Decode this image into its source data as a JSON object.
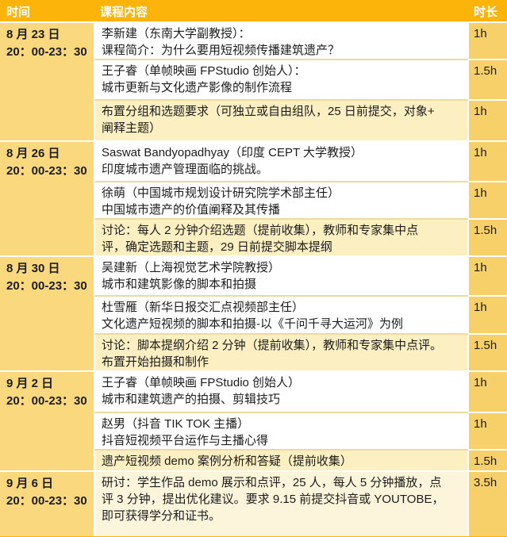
{
  "colors": {
    "header-bg": "#FCB30A",
    "header-text": "#FFFFFF",
    "time-col-bg": "#FAD87D",
    "duration-col-bg": "#F8D06A",
    "row-cream": "#FCEFC2",
    "row-cream-light": "#FDF5DB",
    "divider-tan": "#EDDA9E",
    "text": "#1C1C1C"
  },
  "schedule": {
    "columns": [
      {
        "label": "时间"
      },
      {
        "label": "课程内容"
      },
      {
        "label": "时长"
      }
    ],
    "groups": [
      {
        "date": "8 月 23 日",
        "time": "20：00-23：30",
        "rows": [
          {
            "content": "李新建（东南大学副教授）：\n课程简介：为什么要用短视频传播建筑遗产？",
            "duration": "1h",
            "shade": "white"
          },
          {
            "content": "王子睿（单帧映画 FPStudio 创始人）：\n城市更新与文化遗产影像的制作流程",
            "duration": "1.5h",
            "shade": "white"
          },
          {
            "content": "布置分组和选题要求（可独立或自由组队，25 日前提交，对象+\n阐释主题）",
            "duration": "1h",
            "shade": "cream"
          }
        ]
      },
      {
        "date": "8 月 26 日",
        "time": "20：00-23：30",
        "rows": [
          {
            "content": "Saswat Bandyopadhyay（印度 CEPT 大学教授）\n印度城市遗产管理面临的挑战。",
            "duration": "1h",
            "shade": "white"
          },
          {
            "content": "徐萌（中国城市规划设计研究院学术部主任）\n中国城市遗产的价值阐释及其传播",
            "duration": "1h",
            "shade": "white"
          },
          {
            "content": "讨论：每人 2 分钟介绍选题（提前收集），教师和专家集中点\n评，确定选题和主题，29 日前提交脚本提纲",
            "duration": "1.5h",
            "shade": "cream"
          }
        ]
      },
      {
        "date": "8 月 30 日",
        "time": "20：00-23：30",
        "rows": [
          {
            "content": "吴建新（上海视觉艺术学院教授）\n城市和建筑影像的脚本和拍摄",
            "duration": "1h",
            "shade": "white"
          },
          {
            "content": "杜雪雁（新华日报交汇点视频部主任）\n文化遗产短视频的脚本和拍摄-以《千问千寻大运河》为例",
            "duration": "1h",
            "shade": "white"
          },
          {
            "content": "讨论：脚本提纲介绍 2 分钟（提前收集），教师和专家集中点评。\n布置开始拍摄和制作",
            "duration": "1.5h",
            "shade": "cream"
          }
        ]
      },
      {
        "date": "9 月 2 日",
        "time": "20：00-23：30",
        "rows": [
          {
            "content": "王子睿（单帧映画 FPStudio 创始人）\n城市和建筑遗产的拍摄、剪辑技巧",
            "duration": "1h",
            "shade": "white"
          },
          {
            "content": "赵男（抖音 TIK TOK 主播）\n抖音短视频平台运作与主播心得",
            "duration": "1h",
            "shade": "white"
          },
          {
            "content": "遗产短视频 demo 案例分析和答疑（提前收集）",
            "duration": "1.5h",
            "shade": "cream"
          }
        ]
      },
      {
        "date": "9 月 6 日",
        "time": "20：00-23：30",
        "rows": [
          {
            "content": "研讨：学生作品 demo 展示和点评，25 人，每人 5 分钟播放，点\n评 3 分钟，提出优化建议。要求 9.15 前提交抖音或 YOUTOBE，\n即可获得学分和证书。",
            "duration": "3.5h",
            "shade": "cream-light"
          }
        ]
      }
    ]
  }
}
